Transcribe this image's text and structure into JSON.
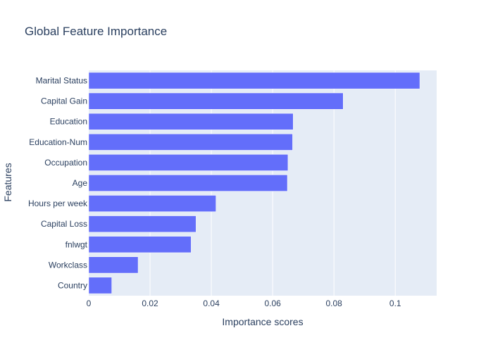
{
  "chart_data": {
    "type": "bar",
    "orientation": "horizontal",
    "title": "Global Feature Importance",
    "xlabel": "Importance scores",
    "ylabel": "Features",
    "categories": [
      "Marital Status",
      "Capital Gain",
      "Education",
      "Education-Num",
      "Occupation",
      "Age",
      "Hours per week",
      "Capital Loss",
      "fnlwgt",
      "Workclass",
      "Country"
    ],
    "values": [
      0.108,
      0.083,
      0.0667,
      0.0665,
      0.065,
      0.0648,
      0.0415,
      0.035,
      0.0334,
      0.0161,
      0.0075
    ],
    "xlim": [
      0,
      0.1135
    ],
    "xticks": [
      0,
      0.02,
      0.04,
      0.06,
      0.08,
      0.1
    ],
    "xtick_labels": [
      "0",
      "0.02",
      "0.04",
      "0.06",
      "0.08",
      "0.1"
    ],
    "grid": true,
    "colors": {
      "bar": "#636efa",
      "plot_bg": "#e5ecf6",
      "grid": "#ffffff",
      "text": "#2a3f5f"
    }
  }
}
